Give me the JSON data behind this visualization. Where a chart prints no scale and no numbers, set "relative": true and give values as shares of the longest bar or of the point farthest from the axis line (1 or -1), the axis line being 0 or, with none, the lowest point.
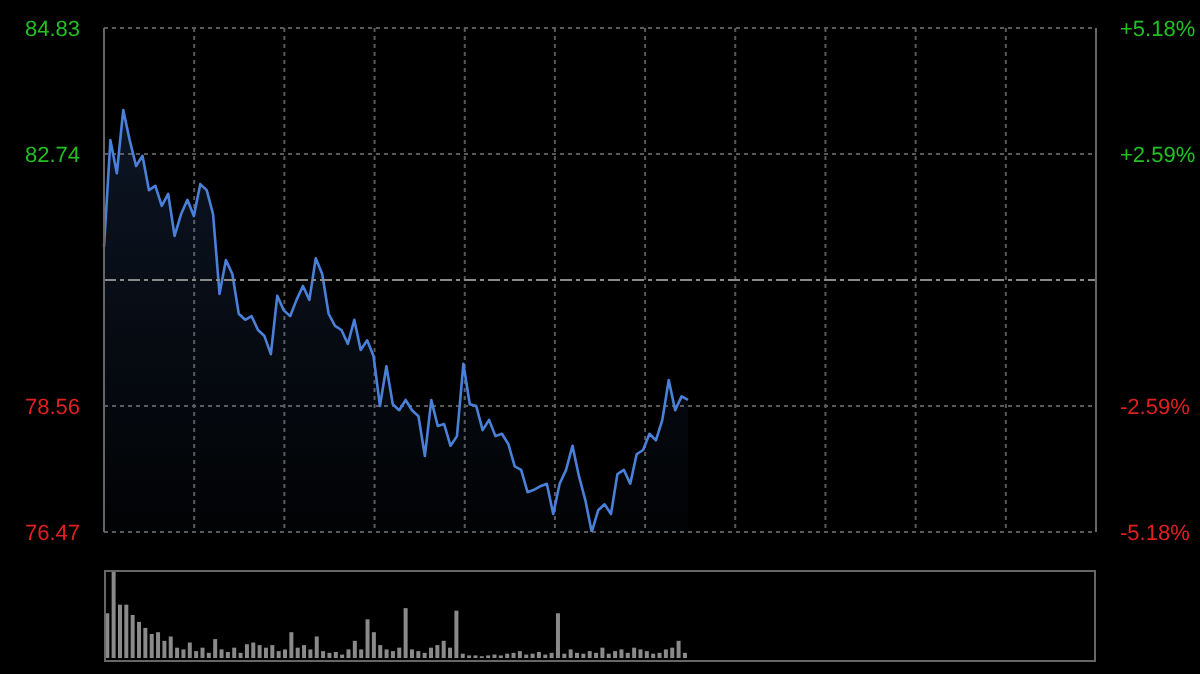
{
  "chart_data": [
    {
      "type": "area",
      "categories": [
        null,
        null,
        null,
        null,
        null,
        null,
        null,
        null,
        null,
        null,
        null,
        null,
        null,
        null,
        null,
        null,
        null,
        null,
        null,
        null,
        null,
        null,
        null,
        null,
        null,
        null,
        null,
        null,
        null,
        null,
        null,
        null,
        null,
        null,
        null,
        null,
        null,
        null,
        null,
        null,
        null,
        null,
        null,
        null,
        null,
        null,
        null,
        null,
        null,
        null,
        null,
        null,
        null,
        null,
        null,
        null,
        null,
        null,
        null,
        null,
        null,
        null,
        null,
        null,
        null,
        null,
        null,
        null,
        null,
        null,
        null,
        null,
        null,
        null,
        null,
        null,
        null,
        null,
        null,
        null,
        null,
        null,
        null,
        null,
        null,
        null,
        null,
        null,
        null,
        null,
        null,
        null
      ],
      "values": [
        81.2,
        82.97,
        82.42,
        83.47,
        82.97,
        82.54,
        82.71,
        82.14,
        82.21,
        81.88,
        82.08,
        81.38,
        81.74,
        81.98,
        81.71,
        82.24,
        82.14,
        81.74,
        80.42,
        80.98,
        80.75,
        80.09,
        79.99,
        80.05,
        79.82,
        79.72,
        79.42,
        80.39,
        80.15,
        80.05,
        80.32,
        80.55,
        80.32,
        81.01,
        80.75,
        80.09,
        79.89,
        79.82,
        79.59,
        79.99,
        79.49,
        79.65,
        79.39,
        78.56,
        79.22,
        78.59,
        78.49,
        78.66,
        78.49,
        78.39,
        77.73,
        78.66,
        78.23,
        78.26,
        77.9,
        78.06,
        79.26,
        78.59,
        78.56,
        78.16,
        78.33,
        78.06,
        78.1,
        77.93,
        77.56,
        77.5,
        77.13,
        77.17,
        77.23,
        77.27,
        76.77,
        77.27,
        77.5,
        77.9,
        77.4,
        77.0,
        76.47,
        76.83,
        76.93,
        76.77,
        77.43,
        77.5,
        77.27,
        77.76,
        77.83,
        78.1,
        77.99,
        78.33,
        78.99,
        78.49,
        78.72,
        78.66
      ],
      "color": "#4a80d8",
      "ylim": [
        76.47,
        84.83
      ],
      "yticks": [
        76.47,
        78.56,
        82.74,
        84.83
      ],
      "y2lim": [
        -5.18,
        5.18
      ],
      "y2ticks": [
        {
          "value": -5.18,
          "label": "-5.18%"
        },
        {
          "value": -2.59,
          "label": "-2.59%"
        },
        {
          "value": 2.59,
          "label": "+2.59%"
        },
        {
          "value": 5.18,
          "label": "+5.18%"
        }
      ],
      "ref_lines": [
        {
          "axis": "y",
          "value": 80.65
        }
      ],
      "grid": true
    },
    {
      "type": "bar",
      "relative": true,
      "categories": [
        null,
        null,
        null,
        null,
        null,
        null,
        null,
        null,
        null,
        null,
        null,
        null,
        null,
        null,
        null,
        null,
        null,
        null,
        null,
        null,
        null,
        null,
        null,
        null,
        null,
        null,
        null,
        null,
        null,
        null,
        null,
        null,
        null,
        null,
        null,
        null,
        null,
        null,
        null,
        null,
        null,
        null,
        null,
        null,
        null,
        null,
        null,
        null,
        null,
        null,
        null,
        null,
        null,
        null,
        null,
        null,
        null,
        null,
        null,
        null,
        null,
        null,
        null,
        null,
        null,
        null,
        null,
        null,
        null,
        null,
        null,
        null,
        null,
        null,
        null,
        null,
        null,
        null,
        null,
        null,
        null,
        null,
        null,
        null,
        null,
        null,
        null,
        null,
        null,
        null,
        null,
        null
      ],
      "values": [
        0.52,
        1.0,
        0.62,
        0.62,
        0.5,
        0.42,
        0.35,
        0.28,
        0.3,
        0.2,
        0.25,
        0.12,
        0.1,
        0.18,
        0.08,
        0.12,
        0.06,
        0.22,
        0.1,
        0.07,
        0.12,
        0.06,
        0.16,
        0.18,
        0.15,
        0.12,
        0.15,
        0.08,
        0.1,
        0.3,
        0.12,
        0.15,
        0.1,
        0.25,
        0.08,
        0.06,
        0.07,
        0.04,
        0.1,
        0.2,
        0.1,
        0.45,
        0.3,
        0.15,
        0.1,
        0.08,
        0.12,
        0.58,
        0.1,
        0.08,
        0.06,
        0.12,
        0.15,
        0.2,
        0.12,
        0.55,
        0.05,
        0.03,
        0.03,
        0.02,
        0.03,
        0.04,
        0.03,
        0.05,
        0.06,
        0.08,
        0.04,
        0.05,
        0.07,
        0.04,
        0.06,
        0.52,
        0.05,
        0.1,
        0.06,
        0.05,
        0.08,
        0.06,
        0.12,
        0.05,
        0.08,
        0.1,
        0.06,
        0.12,
        0.1,
        0.08,
        0.05,
        0.06,
        0.1,
        0.12,
        0.2,
        0.06
      ],
      "color": "#8a8a8a"
    }
  ]
}
